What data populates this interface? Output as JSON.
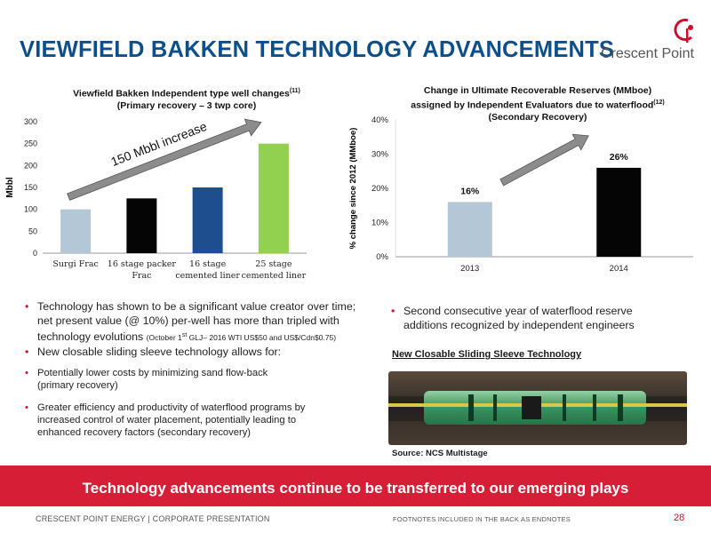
{
  "header": {
    "title": "VIEWFIELD BAKKEN TECHNOLOGY ADVANCEMENTS",
    "logo_text": "Crescent Point"
  },
  "left_chart": {
    "title_line1": "Viewfield Bakken Independent type well changes",
    "title_sup": "(11)",
    "title_line2": "(Primary recovery – 3 twp core)",
    "annotation": "150 Mbbl increase",
    "chart_data": {
      "type": "bar",
      "categories": [
        "Surgi Frac",
        "16 stage packer Frac",
        "16 stage cemented liner",
        "25 stage cemented liner"
      ],
      "category_lines": [
        [
          "Surgi Frac"
        ],
        [
          "16 stage packer",
          "Frac"
        ],
        [
          "16 stage",
          "cemented liner"
        ],
        [
          "25 stage",
          "cemented liner"
        ]
      ],
      "values": [
        100,
        125,
        150,
        250
      ],
      "colors": [
        "#b4c7d6",
        "#050505",
        "#1f4e8f",
        "#92d050"
      ],
      "ylabel": "Mbbl",
      "ylim": [
        0,
        300
      ],
      "yticks": [
        "0",
        "50",
        "100",
        "150",
        "200",
        "250",
        "300"
      ]
    }
  },
  "right_chart": {
    "title_line1": "Change in Ultimate Recoverable Reserves (MMboe)",
    "title_line2": "assigned by Independent Evaluators due to waterflood",
    "title_sup": "(12)",
    "title_line3": "(Secondary Recovery)",
    "chart_data": {
      "type": "bar",
      "categories": [
        "2013",
        "2014"
      ],
      "values": [
        16,
        26
      ],
      "data_labels": [
        "16%",
        "26%"
      ],
      "colors": [
        "#b4c7d6",
        "#050505"
      ],
      "ylabel": "% change since 2012 (MMboe)",
      "ylim": [
        0,
        40
      ],
      "yticks": [
        "0%",
        "10%",
        "20%",
        "30%",
        "40%"
      ]
    }
  },
  "left_text": {
    "b1_a": "Technology has shown to be a significant value creator over time;",
    "b1_b": "net present value (@ 10%) per-well has more than tripled with",
    "b1_c": "technology evolutions",
    "b1_small_pre": "(October 1",
    "b1_small_sup": "st",
    "b1_small_post": "GLJ– 2016 WTI US$50 and US$/Cdn$0.75)",
    "b2": "New closable sliding sleeve technology allows for:",
    "s1_a": "Potentially lower costs by minimizing sand flow-back",
    "s1_b": "(primary recovery)",
    "s2_a": "Greater efficiency and productivity of waterflood  programs by",
    "s2_b": "increased control of water placement, potentially leading to",
    "s2_c": "enhanced recovery factors (secondary recovery)"
  },
  "right_text": {
    "b1_a": "Second consecutive year of waterflood reserve",
    "b1_b": "additions recognized by independent engineers",
    "sleeve_heading": "New Closable Sliding Sleeve Technology",
    "source": "Source: NCS Multistage"
  },
  "banner": "Technology advancements continue to be transferred to our emerging plays",
  "footer": {
    "left": "CRESCENT POINT ENERGY  |  CORPORATE PRESENTATION",
    "mid": "FOOTNOTES INCLUDED IN THE BACK AS ENDNOTES",
    "page": "28"
  }
}
